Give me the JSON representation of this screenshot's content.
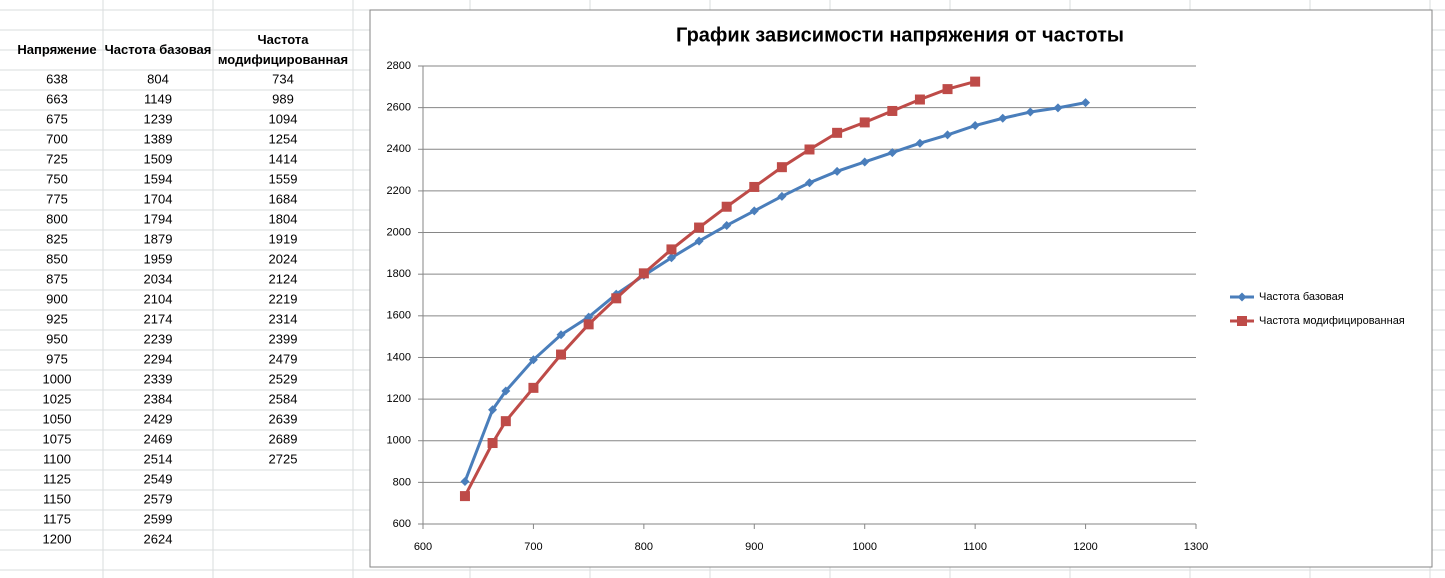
{
  "table": {
    "headers": [
      "Напряжение",
      "Частота базовая",
      "Частота модифицированная"
    ]
  },
  "chart_data": {
    "type": "line",
    "title": "График зависимости напряжения от частоты",
    "x": [
      638,
      663,
      675,
      700,
      725,
      750,
      775,
      800,
      825,
      850,
      875,
      900,
      925,
      950,
      975,
      1000,
      1025,
      1050,
      1075,
      1100,
      1125,
      1150,
      1175,
      1200
    ],
    "series": [
      {
        "name": "Частота базовая",
        "color": "#4a7ebb",
        "marker": "diamond",
        "values": [
          804,
          1149,
          1239,
          1389,
          1509,
          1594,
          1704,
          1794,
          1879,
          1959,
          2034,
          2104,
          2174,
          2239,
          2294,
          2339,
          2384,
          2429,
          2469,
          2514,
          2549,
          2579,
          2599,
          2624
        ]
      },
      {
        "name": "Частота модифицированная",
        "color": "#be4b48",
        "marker": "square",
        "values": [
          734,
          989,
          1094,
          1254,
          1414,
          1559,
          1684,
          1804,
          1919,
          2024,
          2124,
          2219,
          2314,
          2399,
          2479,
          2529,
          2584,
          2639,
          2689,
          2725,
          null,
          null,
          null,
          null
        ]
      }
    ],
    "xlim": [
      600,
      1300
    ],
    "xticks": [
      600,
      700,
      800,
      900,
      1000,
      1100,
      1200,
      1300
    ],
    "ylim": [
      600,
      2800
    ],
    "yticks": [
      600,
      800,
      1000,
      1200,
      1400,
      1600,
      1800,
      2000,
      2200,
      2400,
      2600,
      2800
    ],
    "grid": true,
    "legend": "right"
  }
}
